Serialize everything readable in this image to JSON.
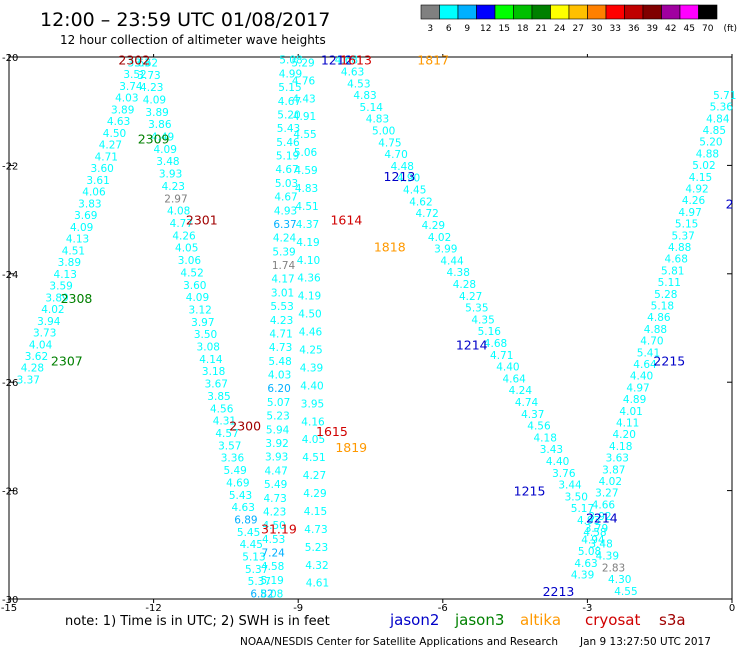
{
  "header": {
    "title": "12:00 – 23:59 UTC 01/08/2017",
    "subtitle": "12 hour collection of altimeter wave heights"
  },
  "colorbar": {
    "labels": [
      "3",
      "6",
      "9",
      "12",
      "15",
      "18",
      "21",
      "24",
      "27",
      "30",
      "33",
      "36",
      "39",
      "42",
      "45",
      "70",
      "(ft)"
    ],
    "colors": [
      "#808080",
      "#00ffff",
      "#00b0ff",
      "#0000ff",
      "#00ff00",
      "#00c000",
      "#008000",
      "#ffff00",
      "#ffc000",
      "#ff8000",
      "#ff0000",
      "#c00000",
      "#800000",
      "#a000a0",
      "#ff00ff",
      "#000000"
    ]
  },
  "footer": {
    "note": "note: 1) Time is in UTC; 2) SWH is in feet",
    "satellites": [
      {
        "name": "jason2",
        "color": "#0000c8"
      },
      {
        "name": "jason3",
        "color": "#008000"
      },
      {
        "name": "altika",
        "color": "#ff9900"
      },
      {
        "name": "cryosat",
        "color": "#d00000"
      },
      {
        "name": "s3a",
        "color": "#a00000"
      }
    ],
    "credit": "NOAA/NESDIS Center for Satellite Applications and Research",
    "timestamp": "Jan  9 13:27:50 UTC 2017"
  },
  "chart_data": {
    "type": "scatter",
    "xlim": [
      -15,
      0
    ],
    "ylim": [
      -30,
      -20
    ],
    "x_ticks": [
      -15,
      -12,
      -9,
      -6,
      -3,
      0
    ],
    "y_ticks": [
      -20,
      -22,
      -24,
      -26,
      -28,
      -30
    ],
    "track_labels": [
      {
        "text": "2302",
        "x": -12.4,
        "y": -20.05,
        "color": "#a00000"
      },
      {
        "text": "2309",
        "x": -12.0,
        "y": -21.5,
        "color": "#008000"
      },
      {
        "text": "2301",
        "x": -11.0,
        "y": -23.0,
        "color": "#a00000"
      },
      {
        "text": "2308",
        "x": -13.6,
        "y": -24.45,
        "color": "#008000"
      },
      {
        "text": "2307",
        "x": -13.8,
        "y": -25.6,
        "color": "#008000"
      },
      {
        "text": "2300",
        "x": -10.1,
        "y": -26.8,
        "color": "#a00000"
      },
      {
        "text": "1212",
        "x": -8.2,
        "y": -20.05,
        "color": "#0000c8"
      },
      {
        "text": "1613",
        "x": -7.8,
        "y": -20.05,
        "color": "#d00000"
      },
      {
        "text": "1817",
        "x": -6.2,
        "y": -20.05,
        "color": "#ff9900"
      },
      {
        "text": "1213",
        "x": -6.9,
        "y": -22.2,
        "color": "#0000c8"
      },
      {
        "text": "1614",
        "x": -8.0,
        "y": -23.0,
        "color": "#d00000"
      },
      {
        "text": "1818",
        "x": -7.1,
        "y": -23.5,
        "color": "#ff9900"
      },
      {
        "text": "1214",
        "x": -5.4,
        "y": -25.3,
        "color": "#0000c8"
      },
      {
        "text": "1615",
        "x": -8.3,
        "y": -26.9,
        "color": "#d00000"
      },
      {
        "text": "1819",
        "x": -7.9,
        "y": -27.2,
        "color": "#ff9900"
      },
      {
        "text": "1215",
        "x": -4.2,
        "y": -28.0,
        "color": "#0000c8"
      },
      {
        "text": "2213",
        "x": -3.6,
        "y": -29.85,
        "color": "#0000c8"
      },
      {
        "text": "2214",
        "x": -2.7,
        "y": -28.5,
        "color": "#0000c8"
      },
      {
        "text": "2215",
        "x": -1.3,
        "y": -25.6,
        "color": "#0000c8"
      },
      {
        "text": "2",
        "x": -0.05,
        "y": -22.7,
        "color": "#0000c8"
      },
      {
        "text": "31.19",
        "x": -9.4,
        "y": -28.7,
        "color": "#d00000"
      }
    ],
    "tracks": [
      {
        "id": "a",
        "x0": -12.3,
        "y0": -20.1,
        "x1": -14.6,
        "y1": -25.95,
        "values": [
          "3.63",
          "3.52",
          "3.74",
          "4.03",
          "3.89",
          "4.63",
          "4.50",
          "4.27",
          "4.71",
          "3.60",
          "3.61",
          "4.06",
          "3.83",
          "3.69",
          "4.09",
          "4.13",
          "4.51",
          "3.89",
          "4.13",
          "3.59",
          "3.89",
          "4.02",
          "3.94",
          "3.73",
          "4.04",
          "3.62",
          "4.28",
          "3.37"
        ]
      },
      {
        "id": "b",
        "x0": -12.15,
        "y0": -20.1,
        "x1": -9.75,
        "y1": -29.9,
        "values": [
          "3.62",
          "3.73",
          "4.23",
          "4.09",
          "3.89",
          "3.86",
          "4.49",
          "4.09",
          "3.48",
          "3.93",
          "4.23",
          "2.97",
          "4.08",
          "4.77",
          "4.26",
          "4.05",
          "3.06",
          "4.52",
          "3.60",
          "4.09",
          "3.12",
          "3.97",
          "3.50",
          "3.08",
          "4.14",
          "3.18",
          "3.67",
          "3.85",
          "4.56",
          "4.31",
          "4.57",
          "3.57",
          "3.36",
          "5.49",
          "4.69",
          "5.43",
          "4.63",
          "6.89",
          "5.45",
          "4.45",
          "5.13",
          "5.37",
          "5.37",
          "6.82"
        ]
      },
      {
        "id": "c",
        "x0": -9.15,
        "y0": -20.05,
        "x1": -9.55,
        "y1": -29.9,
        "values": [
          "5.08",
          "4.99",
          "5.15",
          "4.67",
          "5.20",
          "5.43",
          "5.46",
          "5.19",
          "4.67",
          "5.03",
          "4.67",
          "4.93",
          "6.37",
          "4.24",
          "5.39",
          "1.74",
          "4.17",
          "3.01",
          "5.53",
          "4.23",
          "4.71",
          "4.73",
          "5.48",
          "4.03",
          "6.20",
          "5.07",
          "5.23",
          "5.94",
          "3.92",
          "3.93",
          "4.47",
          "5.49",
          "4.73",
          "4.23",
          "4.50",
          "4.53",
          "7.24",
          "4.58",
          "5.19",
          "5.08"
        ]
      },
      {
        "id": "d",
        "x0": -8.9,
        "y0": -20.1,
        "x1": -8.6,
        "y1": -29.7,
        "values": [
          "5.29",
          "4.76",
          "4.43",
          "4.91",
          "4.55",
          "5.06",
          "4.59",
          "4.83",
          "4.51",
          "4.37",
          "4.19",
          "4.10",
          "4.36",
          "4.19",
          "4.50",
          "4.46",
          "4.25",
          "4.39",
          "4.40",
          "3.95",
          "4.16",
          "4.05",
          "4.51",
          "4.27",
          "4.29",
          "4.15",
          "4.73",
          "5.23",
          "4.32",
          "4.61"
        ]
      },
      {
        "id": "e",
        "x0": -8.0,
        "y0": -20.05,
        "x1": -2.2,
        "y1": -29.85,
        "values": [
          "4.68",
          "4.63",
          "4.53",
          "4.83",
          "5.14",
          "4.83",
          "5.00",
          "4.75",
          "4.70",
          "4.48",
          "4.90",
          "4.45",
          "4.62",
          "4.72",
          "4.29",
          "4.02",
          "3.99",
          "4.44",
          "4.38",
          "4.28",
          "4.27",
          "5.35",
          "4.35",
          "5.16",
          "4.68",
          "4.71",
          "4.40",
          "4.64",
          "4.24",
          "4.74",
          "4.37",
          "4.56",
          "4.18",
          "3.43",
          "4.40",
          "3.76",
          "3.44",
          "3.50",
          "5.17",
          "4.93",
          "4.58",
          "3.48",
          "4.39",
          "2.83",
          "4.30",
          "4.55"
        ]
      },
      {
        "id": "f",
        "x0": -0.15,
        "y0": -20.7,
        "x1": -3.1,
        "y1": -29.55,
        "values": [
          "5.71",
          "5.36",
          "4.84",
          "4.85",
          "5.20",
          "4.88",
          "5.02",
          "4.15",
          "4.92",
          "4.26",
          "4.97",
          "5.15",
          "5.37",
          "4.88",
          "4.68",
          "5.81",
          "5.11",
          "5.28",
          "5.18",
          "4.86",
          "4.88",
          "4.70",
          "5.41",
          "4.64",
          "4.40",
          "4.97",
          "4.89",
          "4.01",
          "4.11",
          "4.20",
          "4.18",
          "3.63",
          "3.87",
          "4.02",
          "3.27",
          "4.66",
          "3.92",
          "3.79",
          "4.94",
          "5.08",
          "4.63",
          "4.39"
        ]
      }
    ]
  }
}
